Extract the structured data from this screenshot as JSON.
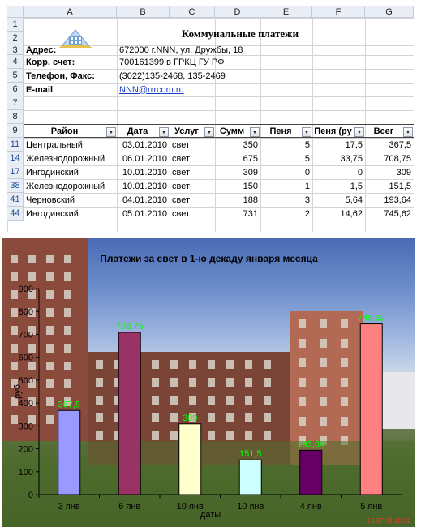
{
  "sheet": {
    "columns": [
      "A",
      "B",
      "C",
      "D",
      "E",
      "F",
      "G"
    ],
    "rows": [
      "1",
      "2",
      "3",
      "4",
      "5",
      "6",
      "7",
      "8",
      "9",
      "11",
      "14",
      "17",
      "38",
      "41",
      "44"
    ],
    "title": "Коммунальные платежи",
    "info": [
      {
        "label": "Адрес:",
        "value": "672000 г.NNN, ул. Дружбы, 18"
      },
      {
        "label": "Корр. счет:",
        "value": "700161399 в ГРКЦ ГУ РФ"
      },
      {
        "label": "Телефон, Факс:",
        "value": "(3022)135-2468, 135-2469"
      },
      {
        "label": "E-mail",
        "value": "NNN@rrrcom.ru"
      }
    ],
    "table_headers": [
      "Район",
      "Дата",
      "Услуг",
      "Сумм",
      "Пеня",
      "Пеня (ру",
      "Всег"
    ],
    "table_rows": [
      [
        "Центральный",
        "03.01.2010",
        "свет",
        "350",
        "5",
        "17,5",
        "367,5"
      ],
      [
        "Железнодорожный",
        "06.01.2010",
        "свет",
        "675",
        "5",
        "33,75",
        "708,75"
      ],
      [
        "Ингодинский",
        "10.01.2010",
        "свет",
        "309",
        "0",
        "0",
        "309"
      ],
      [
        "Железнодорожный",
        "10.01.2010",
        "свет",
        "150",
        "1",
        "1,5",
        "151,5"
      ],
      [
        "Черновский",
        "04.01.2010",
        "свет",
        "188",
        "3",
        "5,64",
        "193,64"
      ],
      [
        "Ингодинский",
        "05.01.2010",
        "свет",
        "731",
        "2",
        "14,62",
        "745,62"
      ]
    ]
  },
  "chart_data": {
    "type": "bar",
    "title": "Платежи за свет в 1-ю декаду января месяца",
    "xlabel": "даты",
    "ylabel": "руб",
    "categories": [
      "3 янв",
      "6 янв",
      "10 янв",
      "10 янв",
      "4 янв",
      "5 янв"
    ],
    "values": [
      367.5,
      708.75,
      309,
      151.5,
      193.64,
      745.62
    ],
    "data_labels": [
      "367,5",
      "708,75",
      "309",
      "151,5",
      "193,64",
      "745,62"
    ],
    "colors": [
      "#9999ff",
      "#993366",
      "#ffffcc",
      "#ccffff",
      "#660066",
      "#ff8080"
    ],
    "label_color": "#00ff00",
    "ylim": [
      0,
      900
    ],
    "yticks": [
      "0",
      "100",
      "200",
      "300",
      "400",
      "500",
      "600",
      "700",
      "800",
      "900"
    ],
    "stamp": "13.07.09 10:01"
  }
}
